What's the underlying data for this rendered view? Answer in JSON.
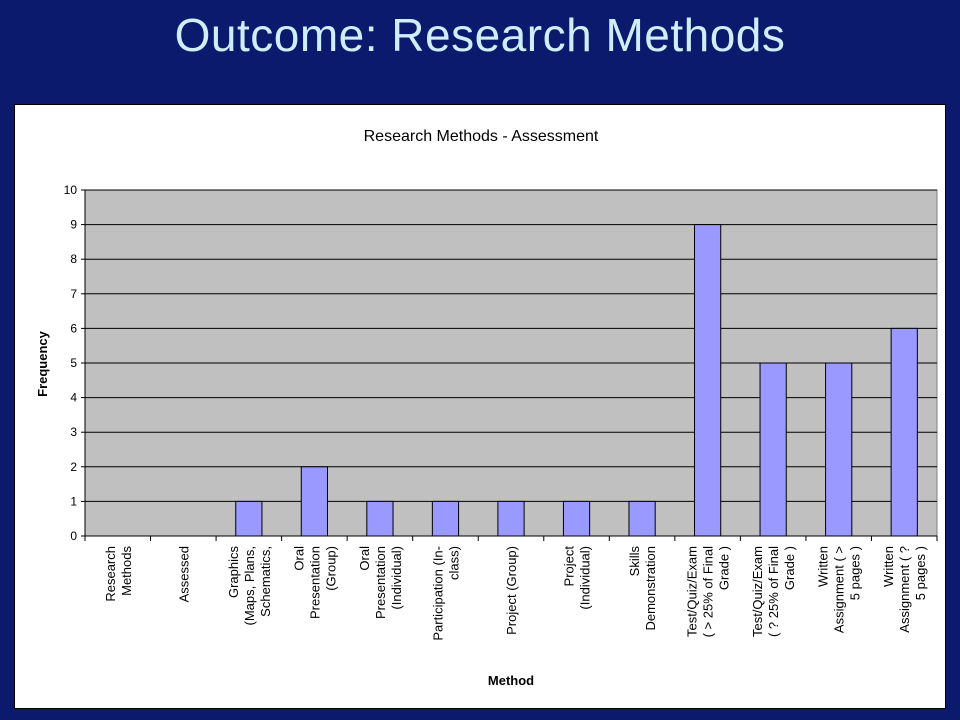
{
  "slide": {
    "title": "Outcome: Research Methods"
  },
  "chart_data": {
    "type": "bar",
    "title": "Research Methods - Assessment",
    "xlabel": "Method",
    "ylabel": "Frequency",
    "ylim": [
      0,
      10
    ],
    "yticks": [
      0,
      1,
      2,
      3,
      4,
      5,
      6,
      7,
      8,
      9,
      10
    ],
    "grid": true,
    "legend": "none",
    "bar_color": "#9999ff",
    "plot_bg": "#c0c0c0",
    "categories": [
      [
        "Research",
        "Methods"
      ],
      [
        "Assessed"
      ],
      [
        "Graphics",
        "(Maps, Plans,",
        "Schematics,"
      ],
      [
        "Oral",
        "Presentation",
        "(Group)"
      ],
      [
        "Oral",
        "Presentation",
        "(Individual)"
      ],
      [
        "Participation (In-",
        "class)"
      ],
      [
        "Project (Group)"
      ],
      [
        "Project",
        "(Individual)"
      ],
      [
        "Skills",
        "Demonstration"
      ],
      [
        "Test/Quiz/Exam",
        "( > 25% of Final",
        "Grade )"
      ],
      [
        "Test/Quiz/Exam",
        "( ? 25% of Final",
        "Grade )"
      ],
      [
        "Written",
        "Assignment ( >",
        "5 pages )"
      ],
      [
        "Written",
        "Assignment ( ?",
        "5 pages )"
      ]
    ],
    "values": [
      0,
      0,
      1,
      2,
      1,
      1,
      1,
      1,
      1,
      9,
      5,
      5,
      6
    ]
  }
}
